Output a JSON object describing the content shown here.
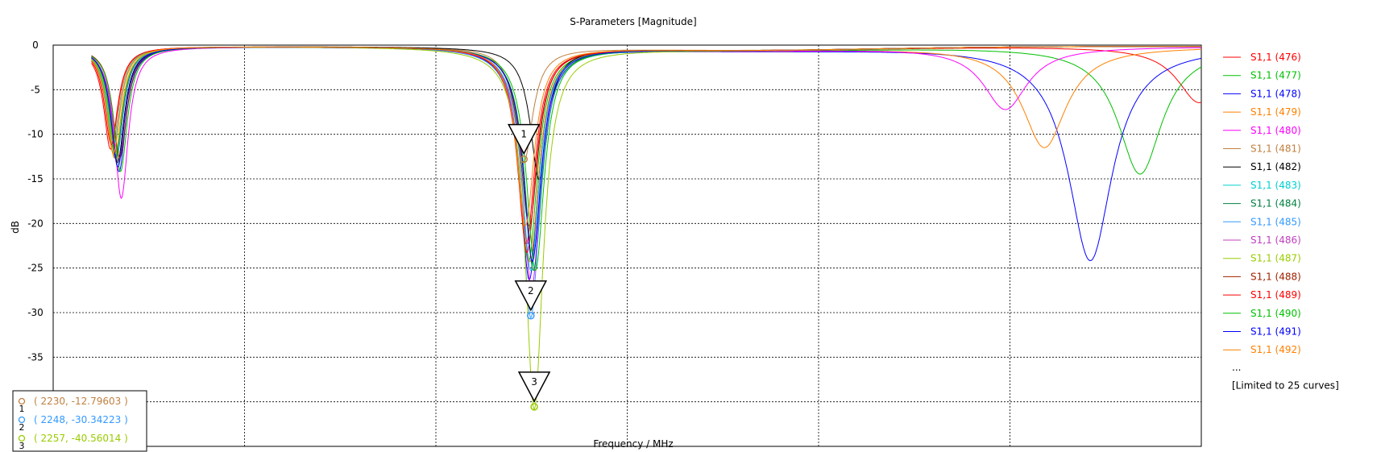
{
  "chart_data": {
    "type": "line",
    "title": "S-Parameters [Magnitude]",
    "xlabel": "Frequency / MHz",
    "ylabel": "dB",
    "xlim": [
      1000,
      4000
    ],
    "ylim": [
      -45,
      0
    ],
    "x_ticks": [
      1500,
      2000,
      2500,
      3000,
      3500,
      4000
    ],
    "y_ticks": [
      0,
      -5,
      -10,
      -15,
      -20,
      -25,
      -30,
      -35,
      -40
    ],
    "grid": true,
    "legend_position": "right",
    "legend_more": "...",
    "legend_note": "[Limited to 25 curves]",
    "series": [
      {
        "name": "S1,1 (476)",
        "color": "#ff0000",
        "dips": [
          [
            1150,
            -11.5
          ],
          [
            2236,
            -22
          ],
          [
            3995,
            -6.3
          ]
        ]
      },
      {
        "name": "S1,1 (477)",
        "color": "#00c000",
        "dips": [
          [
            1165,
            -12.5
          ],
          [
            2242,
            -24
          ],
          [
            3840,
            -14.3
          ]
        ]
      },
      {
        "name": "S1,1 (478)",
        "color": "#0000ff",
        "dips": [
          [
            1172,
            -14
          ],
          [
            2244,
            -26
          ],
          [
            3710,
            -24
          ]
        ]
      },
      {
        "name": "S1,1 (479)",
        "color": "#ff8000",
        "dips": [
          [
            1160,
            -12.5
          ],
          [
            2246,
            -24
          ],
          [
            3590,
            -11.3
          ]
        ]
      },
      {
        "name": "S1,1 (480)",
        "color": "#ff00ff",
        "dips": [
          [
            1178,
            -17
          ],
          [
            2250,
            -27
          ],
          [
            3488,
            -7
          ]
        ]
      },
      {
        "name": "S1,1 (481)",
        "color": "#c08040",
        "dips": [
          [
            1155,
            -11
          ],
          [
            2230,
            -12.8
          ]
        ]
      },
      {
        "name": "S1,1 (482)",
        "color": "#000000",
        "dips": [
          [
            1168,
            -13
          ],
          [
            2270,
            -14.8
          ]
        ]
      },
      {
        "name": "S1,1 (483)",
        "color": "#00d0d0",
        "dips": [
          [
            1158,
            -11
          ],
          [
            2248,
            -25
          ]
        ]
      },
      {
        "name": "S1,1 (484)",
        "color": "#008040",
        "dips": [
          [
            1163,
            -12.5
          ],
          [
            2255,
            -25
          ]
        ]
      },
      {
        "name": "S1,1 (485)",
        "color": "#3399ff",
        "dips": [
          [
            1166,
            -12
          ],
          [
            2248,
            -30.3
          ]
        ]
      },
      {
        "name": "S1,1 (486)",
        "color": "#c040c0",
        "dips": [
          [
            1170,
            -13
          ],
          [
            2240,
            -22
          ]
        ]
      },
      {
        "name": "S1,1 (487)",
        "color": "#99cc00",
        "dips": [
          [
            1162,
            -12
          ],
          [
            2257,
            -40.6
          ]
        ]
      },
      {
        "name": "S1,1 (488)",
        "color": "#a02000",
        "dips": [
          [
            1174,
            -12.5
          ],
          [
            2244,
            -20
          ]
        ]
      },
      {
        "name": "S1,1 (489)",
        "color": "#ff0000",
        "dips": [
          [
            1152,
            -11
          ],
          [
            2238,
            -23
          ]
        ]
      },
      {
        "name": "S1,1 (490)",
        "color": "#00c000",
        "dips": [
          [
            1176,
            -14
          ],
          [
            2260,
            -25
          ]
        ]
      },
      {
        "name": "S1,1 (491)",
        "color": "#0000ff",
        "dips": [
          [
            1169,
            -13.5
          ],
          [
            2252,
            -24
          ]
        ]
      },
      {
        "name": "S1,1 (492)",
        "color": "#ff8000",
        "dips": [
          [
            1157,
            -12
          ],
          [
            2234,
            -20
          ]
        ]
      }
    ],
    "markers": [
      {
        "id": "1",
        "x": 2230,
        "y": -12.79603,
        "color": "#c08040",
        "label": "( 2230, -12.79603 )"
      },
      {
        "id": "2",
        "x": 2248,
        "y": -30.34223,
        "color": "#3399ff",
        "label": "( 2248, -30.34223 )"
      },
      {
        "id": "3",
        "x": 2257,
        "y": -40.56014,
        "color": "#99cc00",
        "label": "( 2257, -40.56014 )"
      }
    ]
  }
}
